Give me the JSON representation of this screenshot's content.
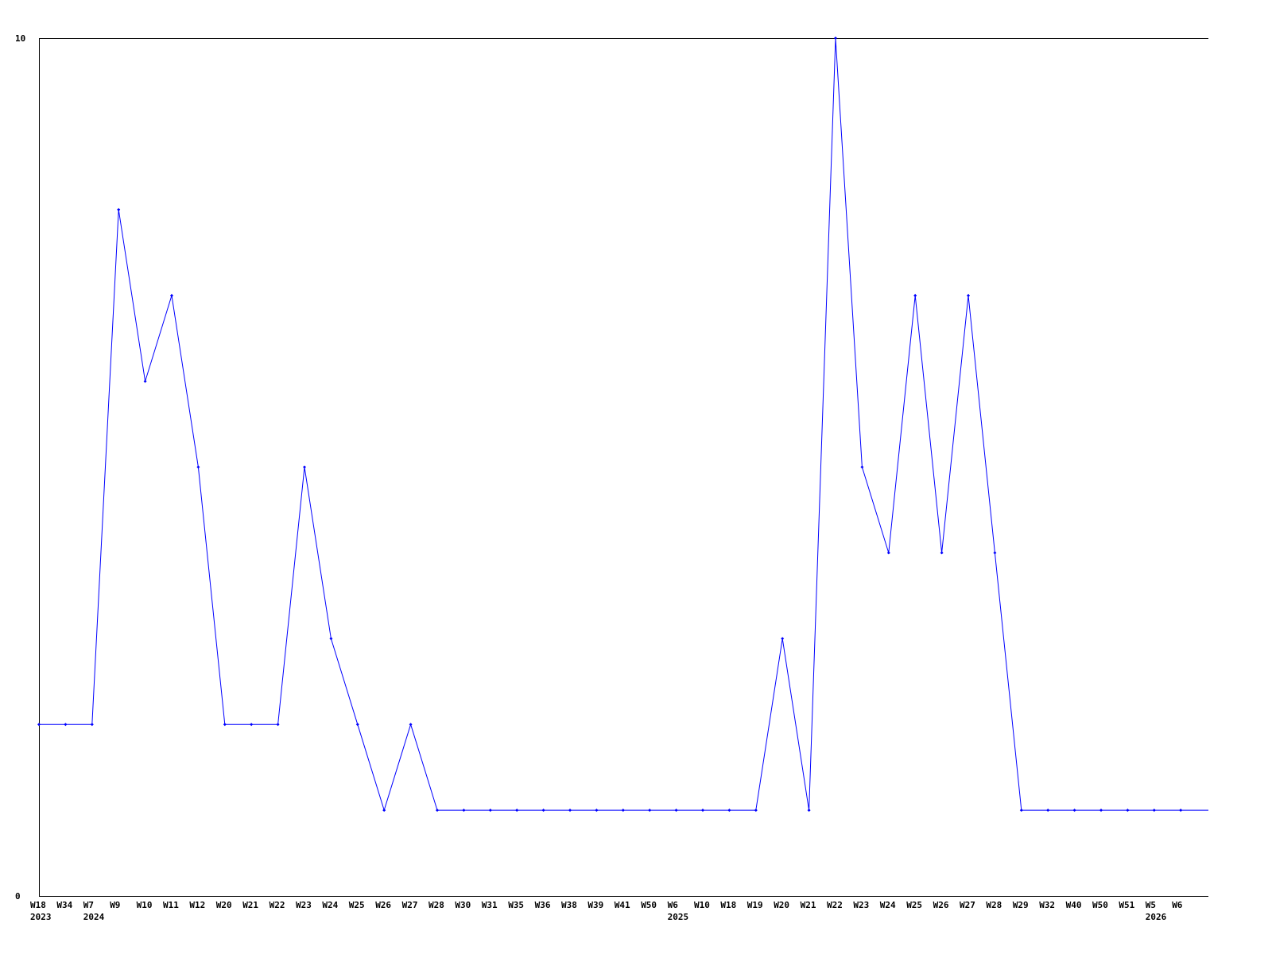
{
  "chart_data": {
    "type": "line",
    "title": "",
    "xlabel": "",
    "ylabel": "",
    "ylim": [
      0,
      10
    ],
    "yticks": [
      "0",
      "10"
    ],
    "grid": false,
    "line_color": "#0000ff",
    "categories": [
      "W18",
      "W34",
      "W7",
      "W9",
      "W10",
      "W11",
      "W12",
      "W20",
      "W21",
      "W22",
      "W23",
      "W24",
      "W25",
      "W26",
      "W27",
      "W28",
      "W30",
      "W31",
      "W35",
      "W36",
      "W38",
      "W39",
      "W41",
      "W50",
      "W6",
      "W10",
      "W18",
      "W19",
      "W20",
      "W21",
      "W22",
      "W23",
      "W24",
      "W25",
      "W26",
      "W27",
      "W28",
      "W29",
      "W32",
      "W40",
      "W50",
      "W51",
      "W5",
      "W6"
    ],
    "year_labels": [
      {
        "index": 0,
        "label": "2023"
      },
      {
        "index": 2,
        "label": "2024"
      },
      {
        "index": 24,
        "label": "2025"
      },
      {
        "index": 42,
        "label": "2026"
      }
    ],
    "series": [
      {
        "values": [
          2,
          2,
          2,
          8,
          6,
          7,
          5,
          2,
          2,
          2,
          5,
          3,
          2,
          1,
          2,
          1,
          1,
          1,
          1,
          1,
          1,
          1,
          1,
          1,
          1,
          1,
          1,
          1,
          3,
          1,
          10,
          5,
          4,
          7,
          4,
          7,
          4,
          1,
          1,
          1,
          1,
          1,
          1,
          1
        ]
      }
    ]
  }
}
